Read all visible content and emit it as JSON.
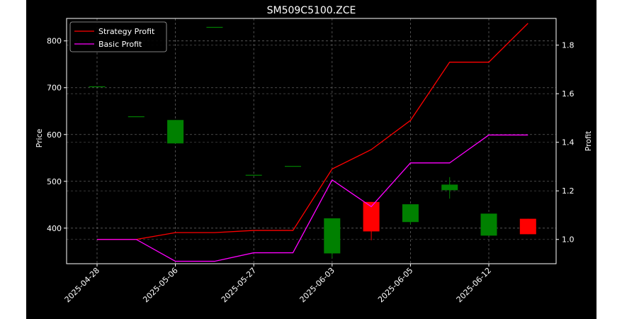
{
  "chart_data": {
    "type": "candlestick+line",
    "title": "SM509C5100.ZCE",
    "ylabel_left": "Price",
    "ylabel_right": "Profit",
    "x_tick_labels": [
      "2025-04-28",
      "2025-05-06",
      "2025-05-27",
      "2025-06-03",
      "2025-06-05",
      "2025-06-12"
    ],
    "x_tick_index": [
      0,
      2,
      4,
      6,
      8,
      10
    ],
    "y_left_ticks": [
      400,
      500,
      600,
      700,
      800
    ],
    "y_left_range": [
      324,
      848
    ],
    "y_right_ticks": [
      1.0,
      1.2,
      1.4,
      1.6,
      1.8
    ],
    "y_right_range": [
      0.9,
      1.91
    ],
    "grid": true,
    "legend_position": "top-left",
    "candles": [
      {
        "i": 0,
        "open": 702,
        "close": 702,
        "high": 702,
        "low": 702
      },
      {
        "i": 1,
        "open": 638,
        "close": 638,
        "high": 638,
        "low": 638
      },
      {
        "i": 2,
        "open": 581,
        "close": 631,
        "high": 631,
        "low": 581
      },
      {
        "i": 3,
        "open": 829,
        "close": 829,
        "high": 829,
        "low": 829
      },
      {
        "i": 4,
        "open": 513,
        "close": 513,
        "high": 513,
        "low": 513
      },
      {
        "i": 5,
        "open": 532,
        "close": 532,
        "high": 532,
        "low": 532
      },
      {
        "i": 6,
        "open": 346,
        "close": 421,
        "high": 421,
        "low": 336
      },
      {
        "i": 7,
        "open": 456,
        "close": 393,
        "high": 456,
        "low": 374
      },
      {
        "i": 8,
        "open": 413,
        "close": 451,
        "high": 451,
        "low": 408
      },
      {
        "i": 9,
        "open": 481,
        "close": 493,
        "high": 509,
        "low": 463
      },
      {
        "i": 10,
        "open": 384,
        "close": 431,
        "high": 431,
        "low": 384
      },
      {
        "i": 11,
        "open": 420,
        "close": 387,
        "high": 420,
        "low": 387
      }
    ],
    "series": [
      {
        "name": "Strategy Profit",
        "color": "#ff0000",
        "values": [
          1.0,
          1.0,
          1.028,
          1.028,
          1.037,
          1.037,
          1.29,
          1.37,
          1.49,
          1.73,
          1.73,
          1.89
        ]
      },
      {
        "name": "Basic Profit",
        "color": "#ff00ff",
        "values": [
          1.0,
          1.0,
          0.91,
          0.91,
          0.945,
          0.945,
          1.245,
          1.135,
          1.315,
          1.315,
          1.43,
          1.43
        ]
      }
    ],
    "candle_colors": {
      "up": "#008000",
      "down": "#ff0000"
    }
  }
}
